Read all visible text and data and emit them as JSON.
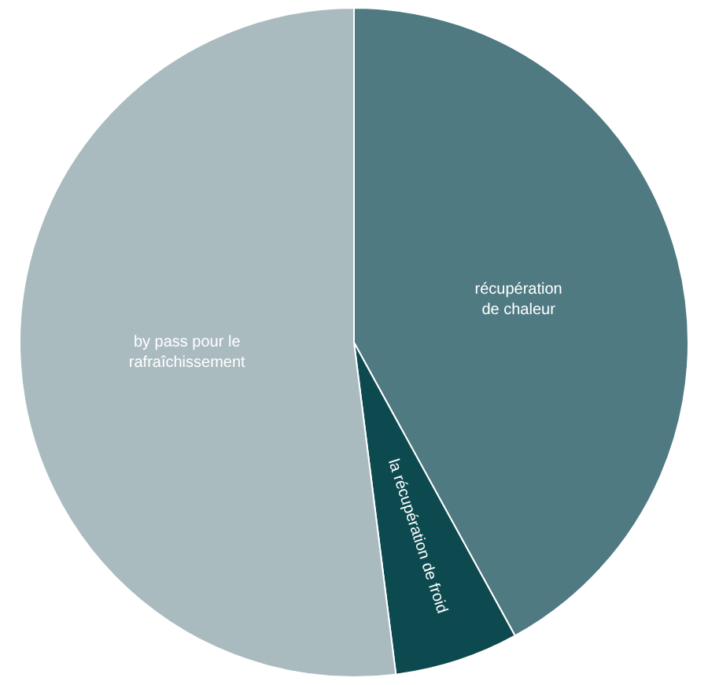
{
  "chart_data": {
    "type": "pie",
    "categories": [
      "récupération\nde chaleur",
      "la récupération de froid",
      "by pass pour le\nrafraîchissement"
    ],
    "values": [
      42,
      6,
      52
    ],
    "colors": [
      "#4f7a82",
      "#0d4a4f",
      "#aabbc0"
    ],
    "legend": false
  }
}
